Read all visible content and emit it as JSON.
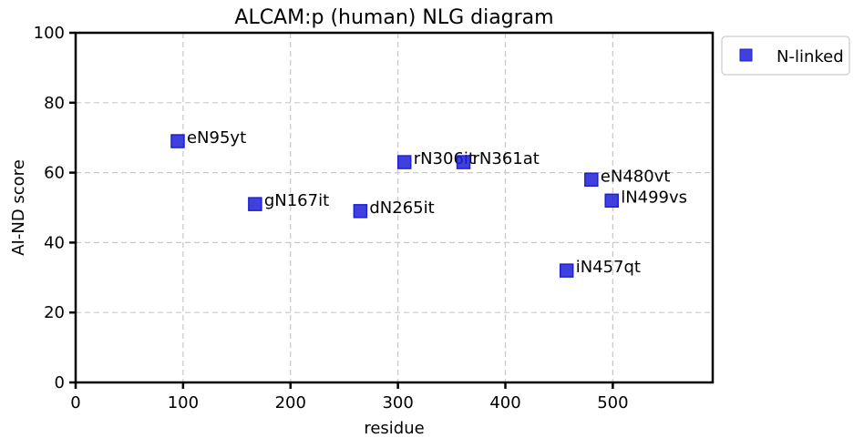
{
  "chart_data": {
    "type": "scatter",
    "title": "ALCAM:p (human) NLG diagram",
    "xlabel": "residue",
    "ylabel": "AI-ND score",
    "xlim": [
      0,
      593
    ],
    "ylim": [
      0,
      100
    ],
    "xticks": [
      0,
      100,
      200,
      300,
      400,
      500
    ],
    "yticks": [
      0,
      20,
      40,
      60,
      80,
      100
    ],
    "grid": true,
    "legend_position": "outside-top-right",
    "series": [
      {
        "name": "N-linked",
        "color": "#1f1fd6",
        "marker": "square",
        "points": [
          {
            "x": 95,
            "y": 69,
            "label": "eN95yt"
          },
          {
            "x": 167,
            "y": 51,
            "label": "gN167it"
          },
          {
            "x": 265,
            "y": 49,
            "label": "dN265it"
          },
          {
            "x": 306,
            "y": 63,
            "label": "rN306it"
          },
          {
            "x": 361,
            "y": 63,
            "label": "rN361at"
          },
          {
            "x": 457,
            "y": 32,
            "label": "iN457qt"
          },
          {
            "x": 480,
            "y": 58,
            "label": "eN480vt"
          },
          {
            "x": 499,
            "y": 52,
            "label": "lN499vs"
          }
        ]
      }
    ]
  }
}
